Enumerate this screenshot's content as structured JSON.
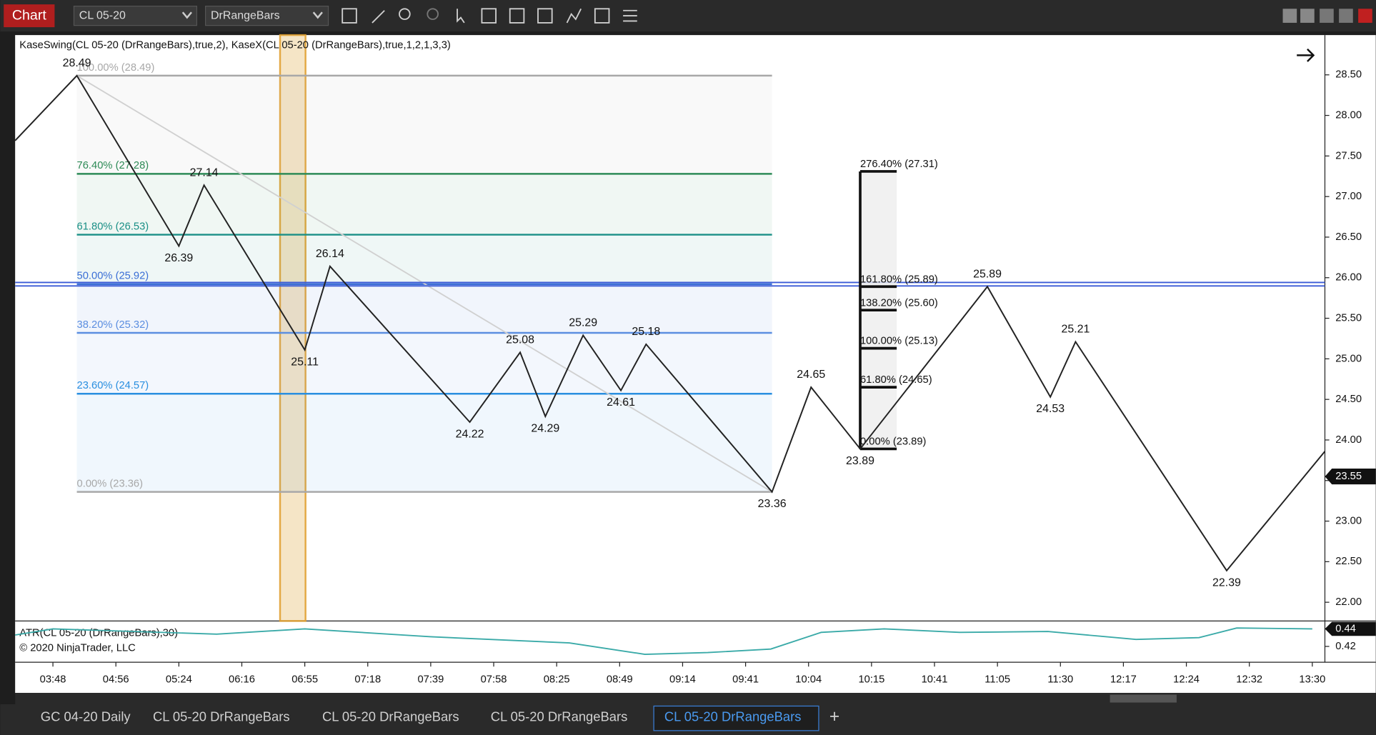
{
  "toolbar": {
    "title": "Chart",
    "instrument": "CL 05-20",
    "bar_type": "DrRangeBars"
  },
  "chart_data": {
    "type": "line",
    "title": "KaseSwing(CL 05-20 (DrRangeBars),true,2), KaseX(CL 05-20 (DrRangeBars),true,1,2,1,3,3)",
    "x": [
      0,
      4.9,
      13.0,
      15.0,
      23.0,
      25.0,
      36.1,
      40.1,
      42.1,
      45.1,
      48.1,
      50.1,
      60.1,
      63.2,
      67.1,
      77.2,
      82.2,
      84.2,
      96.2,
      104
    ],
    "values": [
      27.69,
      28.49,
      26.39,
      27.14,
      25.11,
      26.14,
      24.22,
      25.08,
      24.29,
      25.29,
      24.61,
      25.18,
      23.36,
      24.65,
      23.89,
      25.89,
      24.53,
      25.21,
      22.39,
      23.86
    ],
    "value_labels": [
      null,
      "28.49",
      "26.39",
      "27.14",
      "25.11",
      "26.14",
      "24.22",
      "25.08",
      "24.29",
      "25.29",
      "24.61",
      "25.18",
      "23.36",
      "24.65",
      "23.89",
      "25.89",
      "24.53",
      "25.21",
      "22.39",
      null
    ],
    "color": "#222222",
    "xlim": [
      0,
      104
    ],
    "ylim": [
      21.78,
      28.99
    ],
    "yticks": [
      {
        "value": 22,
        "label": "22.00"
      },
      {
        "value": 22.5,
        "label": "22.50"
      },
      {
        "value": 23,
        "label": "23.00"
      },
      {
        "value": 23.5,
        "label": "23.50"
      },
      {
        "value": 24,
        "label": "24.00"
      },
      {
        "value": 24.5,
        "label": "24.50"
      },
      {
        "value": 25,
        "label": "25.00"
      },
      {
        "value": 25.5,
        "label": "25.50"
      },
      {
        "value": 26,
        "label": "26.00"
      },
      {
        "value": 26.5,
        "label": "26.50"
      },
      {
        "value": 27,
        "label": "27.00"
      },
      {
        "value": 27.5,
        "label": "27.50"
      },
      {
        "value": 28,
        "label": "28.00"
      },
      {
        "value": 28.5,
        "label": "28.50"
      }
    ],
    "xticks": [
      {
        "value": 3,
        "label": "03:48"
      },
      {
        "value": 8,
        "label": "04:56"
      },
      {
        "value": 13,
        "label": "05:24"
      },
      {
        "value": 18,
        "label": "06:16"
      },
      {
        "value": 23,
        "label": "06:55"
      },
      {
        "value": 28,
        "label": "07:18"
      },
      {
        "value": 33,
        "label": "07:39"
      },
      {
        "value": 38,
        "label": "07:58"
      },
      {
        "value": 43,
        "label": "08:25"
      },
      {
        "value": 48,
        "label": "08:49"
      },
      {
        "value": 53,
        "label": "09:14"
      },
      {
        "value": 58,
        "label": "09:41"
      },
      {
        "value": 63,
        "label": "10:04"
      },
      {
        "value": 68,
        "label": "10:15"
      },
      {
        "value": 73,
        "label": "10:41"
      },
      {
        "value": 78,
        "label": "11:05"
      },
      {
        "value": 83,
        "label": "11:30"
      },
      {
        "value": 88,
        "label": "12:17"
      },
      {
        "value": 93,
        "label": "12:24"
      },
      {
        "value": 98,
        "label": "12:32"
      },
      {
        "value": 103,
        "label": "13:30"
      }
    ],
    "retracement": {
      "x_range": [
        4.9,
        60.1
      ],
      "levels": [
        {
          "label": "100.00% (28.49)",
          "value": 28.49,
          "color": "#a8a8a8"
        },
        {
          "label": "76.40% (27.28)",
          "value": 27.28,
          "color": "#2e8b57"
        },
        {
          "label": "61.80% (26.53)",
          "value": 26.53,
          "color": "#1a8f86"
        },
        {
          "label": "50.00% (25.92)",
          "value": 25.92,
          "color": "#3b6fd6"
        },
        {
          "label": "38.20% (25.32)",
          "value": 25.32,
          "color": "#5b8ee0"
        },
        {
          "label": "23.60% (24.57)",
          "value": 24.57,
          "color": "#2a8fe0"
        },
        {
          "label": "0.00% (23.36)",
          "value": 23.36,
          "color": "#a8a8a8"
        }
      ]
    },
    "extension": {
      "x_range": [
        67.1,
        70.0
      ],
      "color": "#111111",
      "levels": [
        {
          "label": "276.40% (27.31)",
          "value": 27.31
        },
        {
          "label": "161.80% (25.89)",
          "value": 25.89
        },
        {
          "label": "138.20% (25.60)",
          "value": 25.6
        },
        {
          "label": "100.00% (25.13)",
          "value": 25.13
        },
        {
          "label": "61.80% (24.65)",
          "value": 24.65
        },
        {
          "label": "0.00% (23.89)",
          "value": 23.89
        }
      ]
    },
    "horizontal_line": {
      "value": 25.92,
      "color": "#3b5bd6"
    },
    "last_price": 23.55
  },
  "atr": {
    "title": "ATR(CL 05-20 (DrRangeBars),30)",
    "x": [
      0,
      3,
      16,
      23,
      33,
      44,
      50,
      55,
      60,
      64,
      69,
      75,
      82,
      89,
      94,
      97,
      103
    ],
    "values": [
      0.433,
      0.44,
      0.434,
      0.44,
      0.431,
      0.424,
      0.411,
      0.413,
      0.417,
      0.436,
      0.44,
      0.436,
      0.437,
      0.428,
      0.43,
      0.441,
      0.44
    ],
    "color": "#3aaaa8",
    "ylim": [
      0.405,
      0.447
    ],
    "yticks": [
      0.42
    ],
    "last": 0.44
  },
  "copyright": "© 2020 NinjaTrader, LLC",
  "tabs": [
    "GC 04-20 Daily",
    "CL 05-20 DrRangeBars",
    "CL 05-20 DrRangeBars",
    "CL 05-20 DrRangeBars",
    "CL 05-20 DrRangeBars",
    "+"
  ],
  "active_tab": 4
}
